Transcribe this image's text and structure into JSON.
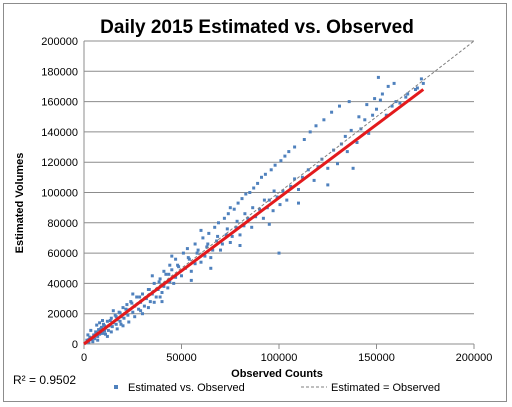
{
  "chart_data": {
    "type": "scatter",
    "title": "Daily 2015 Estimated vs. Observed",
    "xlabel": "Observed Counts",
    "ylabel": "Estimated Volumes",
    "xlim": [
      0,
      200000
    ],
    "ylim": [
      0,
      200000
    ],
    "x_ticks": [
      "0",
      "50000",
      "100000",
      "150000",
      "200000"
    ],
    "y_ticks": [
      "0",
      "20000",
      "40000",
      "60000",
      "80000",
      "100000",
      "120000",
      "140000",
      "160000",
      "180000",
      "200000"
    ],
    "grid": true,
    "legend_position": "bottom",
    "r_squared_label": "R² = 0.9502",
    "colors": {
      "points": "#4f81bd",
      "trend": "#e31a1c",
      "identity": "#7f7f7f"
    },
    "series": [
      {
        "name": "Estimated vs. Observed",
        "kind": "points",
        "points": [
          [
            1500,
            2500
          ],
          [
            2500,
            1200
          ],
          [
            3000,
            4500
          ],
          [
            4000,
            3000
          ],
          [
            5000,
            6000
          ],
          [
            5500,
            3500
          ],
          [
            6000,
            8000
          ],
          [
            7000,
            5000
          ],
          [
            7500,
            9500
          ],
          [
            8000,
            6500
          ],
          [
            9000,
            11000
          ],
          [
            9500,
            7000
          ],
          [
            10000,
            13000
          ],
          [
            10500,
            8500
          ],
          [
            11000,
            10500
          ],
          [
            12000,
            15000
          ],
          [
            12500,
            9000
          ],
          [
            13000,
            12000
          ],
          [
            14000,
            17000
          ],
          [
            14500,
            11500
          ],
          [
            15000,
            14000
          ],
          [
            16000,
            19000
          ],
          [
            16500,
            13000
          ],
          [
            17000,
            16000
          ],
          [
            18000,
            21000
          ],
          [
            18500,
            15000
          ],
          [
            19000,
            18000
          ],
          [
            20000,
            24000
          ],
          [
            20500,
            17000
          ],
          [
            21000,
            20000
          ],
          [
            22000,
            26000
          ],
          [
            22500,
            19000
          ],
          [
            23000,
            22500
          ],
          [
            24000,
            28000
          ],
          [
            25000,
            21000
          ],
          [
            26000,
            25000
          ],
          [
            27000,
            31000
          ],
          [
            28000,
            23000
          ],
          [
            29000,
            27500
          ],
          [
            30000,
            33000
          ],
          [
            31000,
            25000
          ],
          [
            32000,
            30000
          ],
          [
            33000,
            36000
          ],
          [
            34000,
            28000
          ],
          [
            35000,
            33000
          ],
          [
            36000,
            40000
          ],
          [
            37000,
            31000
          ],
          [
            38000,
            36000
          ],
          [
            39000,
            43000
          ],
          [
            40000,
            34000
          ],
          [
            41000,
            38000
          ],
          [
            42000,
            46000
          ],
          [
            43000,
            37000
          ],
          [
            44000,
            41000
          ],
          [
            45000,
            49000
          ],
          [
            46000,
            40000
          ],
          [
            47000,
            44000
          ],
          [
            48000,
            52000
          ],
          [
            50000,
            45000
          ],
          [
            52000,
            50000
          ],
          [
            54000,
            56000
          ],
          [
            55000,
            48000
          ],
          [
            57000,
            53000
          ],
          [
            58000,
            60000
          ],
          [
            60000,
            54000
          ],
          [
            62000,
            58000
          ],
          [
            63000,
            64000
          ],
          [
            65000,
            57000
          ],
          [
            66000,
            62000
          ],
          [
            68000,
            68000
          ],
          [
            70000,
            62000
          ],
          [
            71000,
            66000
          ],
          [
            73000,
            72000
          ],
          [
            75000,
            67000
          ],
          [
            76000,
            71000
          ],
          [
            78000,
            77000
          ],
          [
            80000,
            72000
          ],
          [
            82000,
            78000
          ],
          [
            84000,
            83000
          ],
          [
            86000,
            77000
          ],
          [
            88000,
            84000
          ],
          [
            90000,
            89000
          ],
          [
            92000,
            83000
          ],
          [
            94000,
            90000
          ],
          [
            95000,
            95000
          ],
          [
            97000,
            88000
          ],
          [
            99000,
            97000
          ],
          [
            100000,
            60000
          ],
          [
            102000,
            101000
          ],
          [
            104000,
            95000
          ],
          [
            106000,
            104000
          ],
          [
            108000,
            109000
          ],
          [
            110000,
            102000
          ],
          [
            112000,
            110000
          ],
          [
            115000,
            115000
          ],
          [
            118000,
            108000
          ],
          [
            120000,
            117000
          ],
          [
            122000,
            122000
          ],
          [
            125000,
            116000
          ],
          [
            128000,
            128000
          ],
          [
            130000,
            119000
          ],
          [
            132000,
            132000
          ],
          [
            134000,
            137000
          ],
          [
            135000,
            127000
          ],
          [
            137000,
            141000
          ],
          [
            138000,
            116000
          ],
          [
            140000,
            133000
          ],
          [
            142000,
            142000
          ],
          [
            144000,
            148000
          ],
          [
            146000,
            139000
          ],
          [
            148000,
            151000
          ],
          [
            150000,
            155000
          ],
          [
            151000,
            176000
          ],
          [
            152000,
            161000
          ],
          [
            155000,
            151000
          ],
          [
            158000,
            157000
          ],
          [
            160000,
            160000
          ],
          [
            165000,
            163000
          ],
          [
            170000,
            168000
          ],
          [
            173000,
            175000
          ],
          [
            174000,
            172000
          ],
          [
            60000,
            75000
          ],
          [
            75000,
            90000
          ],
          [
            85000,
            100000
          ],
          [
            45000,
            58000
          ],
          [
            35000,
            45000
          ],
          [
            25000,
            33000
          ],
          [
            15000,
            22000
          ],
          [
            8000,
            14000
          ],
          [
            12000,
            5000
          ],
          [
            20000,
            12000
          ],
          [
            30000,
            20000
          ],
          [
            40000,
            28000
          ],
          [
            55000,
            42000
          ],
          [
            65000,
            50000
          ],
          [
            80000,
            65000
          ],
          [
            95000,
            79000
          ],
          [
            110000,
            93000
          ],
          [
            125000,
            105000
          ],
          [
            3500,
            9000
          ],
          [
            6500,
            12500
          ],
          [
            9500,
            15500
          ],
          [
            2000,
            6000
          ],
          [
            4500,
            1500
          ],
          [
            7000,
            2500
          ],
          [
            11000,
            6500
          ],
          [
            14000,
            8000
          ],
          [
            17000,
            10000
          ],
          [
            19000,
            13000
          ],
          [
            23000,
            14500
          ],
          [
            26000,
            18000
          ],
          [
            29000,
            22000
          ],
          [
            33000,
            24000
          ],
          [
            36000,
            27500
          ],
          [
            39000,
            31000
          ],
          [
            41000,
            48000
          ],
          [
            44000,
            52000
          ],
          [
            47000,
            56000
          ],
          [
            51000,
            60000
          ],
          [
            53000,
            63000
          ],
          [
            57000,
            66000
          ],
          [
            61000,
            70000
          ],
          [
            64000,
            73000
          ],
          [
            67000,
            77000
          ],
          [
            69000,
            80000
          ],
          [
            72000,
            83000
          ],
          [
            74000,
            86000
          ],
          [
            77000,
            89000
          ],
          [
            79000,
            93000
          ],
          [
            81000,
            96000
          ],
          [
            83000,
            99000
          ],
          [
            87000,
            103000
          ],
          [
            89000,
            106000
          ],
          [
            91000,
            110000
          ],
          [
            93000,
            112000
          ],
          [
            96000,
            115000
          ],
          [
            98000,
            118000
          ],
          [
            101000,
            121000
          ],
          [
            103000,
            124000
          ],
          [
            105000,
            127000
          ],
          [
            108000,
            130000
          ],
          [
            113000,
            135000
          ],
          [
            116000,
            140000
          ],
          [
            119000,
            144000
          ],
          [
            123000,
            148000
          ],
          [
            127000,
            153000
          ],
          [
            131000,
            157000
          ],
          [
            136000,
            160000
          ],
          [
            141000,
            150000
          ],
          [
            145000,
            158000
          ],
          [
            149000,
            162000
          ],
          [
            153000,
            165000
          ],
          [
            156000,
            170000
          ],
          [
            159000,
            172000
          ],
          [
            162000,
            159000
          ],
          [
            166000,
            165000
          ],
          [
            171000,
            169000
          ],
          [
            100500,
            92000
          ],
          [
            97500,
            101000
          ],
          [
            92500,
            95000
          ],
          [
            86500,
            90000
          ],
          [
            82500,
            86000
          ],
          [
            78500,
            81000
          ],
          [
            73500,
            76000
          ],
          [
            68500,
            71000
          ],
          [
            63500,
            66000
          ],
          [
            58500,
            62000
          ],
          [
            53500,
            57000
          ],
          [
            48500,
            51000
          ],
          [
            43500,
            46000
          ],
          [
            38500,
            41000
          ],
          [
            33500,
            36000
          ],
          [
            28500,
            31000
          ],
          [
            24500,
            27000
          ],
          [
            21500,
            23000
          ],
          [
            18500,
            20500
          ],
          [
            16500,
            18000
          ],
          [
            13500,
            15500
          ],
          [
            10500,
            12000
          ],
          [
            8500,
            10000
          ],
          [
            6500,
            7500
          ],
          [
            5000,
            5500
          ],
          [
            3500,
            4000
          ],
          [
            2500,
            3000
          ]
        ]
      },
      {
        "name": "Estimated = Observed",
        "kind": "line",
        "points": [
          [
            0,
            0
          ],
          [
            200000,
            200000
          ]
        ]
      },
      {
        "name": "",
        "kind": "trend",
        "points": [
          [
            0,
            0
          ],
          [
            174000,
            168000
          ]
        ]
      }
    ]
  }
}
